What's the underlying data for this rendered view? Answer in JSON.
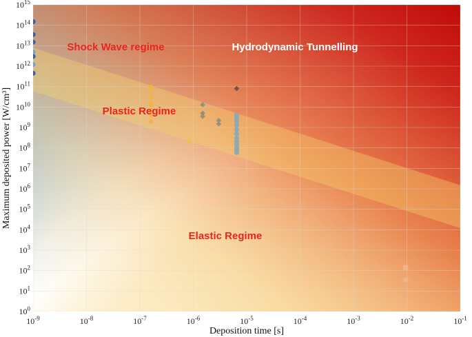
{
  "chart_data": {
    "type": "scatter",
    "title": "",
    "xlabel": "Deposition time [s]",
    "ylabel": "Maximum deposited power [W/cm³]",
    "xscale": "log",
    "yscale": "log",
    "xlim": [
      1e-09,
      0.1
    ],
    "ylim": [
      1,
      1000000000000000.0
    ],
    "grid": true,
    "x_ticks": [
      {
        "value": 1e-09,
        "mant": "10",
        "exp": "-9"
      },
      {
        "value": 1e-08,
        "mant": "10",
        "exp": "-8"
      },
      {
        "value": 1e-07,
        "mant": "10",
        "exp": "-7"
      },
      {
        "value": 1e-06,
        "mant": "10",
        "exp": "-6"
      },
      {
        "value": 1e-05,
        "mant": "10",
        "exp": "-5"
      },
      {
        "value": 0.0001,
        "mant": "10",
        "exp": "-4"
      },
      {
        "value": 0.001,
        "mant": "10",
        "exp": "-3"
      },
      {
        "value": 0.01,
        "mant": "10",
        "exp": "-2"
      },
      {
        "value": 0.1,
        "mant": "10",
        "exp": "-1"
      }
    ],
    "y_ticks": [
      {
        "value": 1,
        "mant": "10",
        "exp": "0"
      },
      {
        "value": 10.0,
        "mant": "10",
        "exp": "1"
      },
      {
        "value": 100.0,
        "mant": "10",
        "exp": "2"
      },
      {
        "value": 1000.0,
        "mant": "10",
        "exp": "3"
      },
      {
        "value": 10000.0,
        "mant": "10",
        "exp": "4"
      },
      {
        "value": 100000.0,
        "mant": "10",
        "exp": "5"
      },
      {
        "value": 1000000.0,
        "mant": "10",
        "exp": "6"
      },
      {
        "value": 10000000.0,
        "mant": "10",
        "exp": "7"
      },
      {
        "value": 100000000.0,
        "mant": "10",
        "exp": "8"
      },
      {
        "value": 1000000000.0,
        "mant": "10",
        "exp": "9"
      },
      {
        "value": 10000000000.0,
        "mant": "10",
        "exp": "10"
      },
      {
        "value": 100000000000.0,
        "mant": "10",
        "exp": "11"
      },
      {
        "value": 1000000000000.0,
        "mant": "10",
        "exp": "12"
      },
      {
        "value": 10000000000000.0,
        "mant": "10",
        "exp": "13"
      },
      {
        "value": 100000000000000.0,
        "mant": "10",
        "exp": "14"
      },
      {
        "value": 1000000000000000.0,
        "mant": "10",
        "exp": "15"
      }
    ],
    "regions": [
      {
        "label": "Shock Wave regime",
        "color": "#e8241f"
      },
      {
        "label": "Hydrodynamic Tunnelling",
        "color": "#ffffff"
      },
      {
        "label": "Plastic Regime",
        "color": "#e8241f"
      },
      {
        "label": "Elastic Regime",
        "color": "#e8241f"
      }
    ],
    "series": [
      {
        "marker": "circle",
        "color": "#3d5f93",
        "x": [
          1e-09,
          1e-09,
          1e-09,
          1e-09,
          1e-09
        ],
        "y": [
          150000000000000.0,
          35000000000000.0,
          3000000000000.0,
          450000000000.0,
          15000000000000.0
        ]
      },
      {
        "marker": "circle",
        "color": "#7b9fcf",
        "x": [
          1e-09,
          1e-09
        ],
        "y": [
          5000000000000.0,
          1200000000000.0
        ]
      },
      {
        "marker": "diamond",
        "color": "#f2b245",
        "x": [
          1.6e-07,
          1.6e-07,
          1.6e-07,
          1.6e-07,
          1.6e-07,
          1.6e-07,
          1.6e-07,
          1.6e-07
        ],
        "y": [
          100000000000.0,
          70000000000.0,
          30000000000.0,
          15000000000.0,
          7000000000.0,
          4000000000.0,
          2000000000.0,
          13000000000.0
        ]
      },
      {
        "marker": "diamond",
        "color": "#f2c04a",
        "x": [
          8.5e-07
        ],
        "y": [
          220000000.0
        ]
      },
      {
        "marker": "diamond",
        "color": "#9a8f77",
        "x": [
          1.5e-06,
          1.5e-06,
          1.5e-06,
          3e-06,
          3e-06
        ],
        "y": [
          13000000000.0,
          5000000000.0,
          3500000000.0,
          2200000000.0,
          1500000000.0
        ]
      },
      {
        "marker": "diamond",
        "color": "#7d4f42",
        "x": [
          6.5e-06
        ],
        "y": [
          80000000000.0
        ]
      },
      {
        "marker": "circle",
        "color": "#8fa9b2",
        "x": [
          6.5e-06,
          6.5e-06,
          6.5e-06,
          6.5e-06,
          6.5e-06,
          6.5e-06,
          6.5e-06,
          6.5e-06,
          6.5e-06,
          6.5e-06,
          6.5e-06,
          6.5e-06
        ],
        "y": [
          3000000000.0,
          2000000000.0,
          1300000000.0,
          800000000.0,
          500000000.0,
          300000000.0,
          200000000.0,
          150000000.0,
          100000000.0,
          80000000.0,
          60000000.0,
          4000000000.0
        ]
      },
      {
        "marker": "square",
        "color": "#f0b48d",
        "x": [
          0.0095,
          0.0095
        ],
        "y": [
          140,
          35
        ]
      }
    ]
  }
}
